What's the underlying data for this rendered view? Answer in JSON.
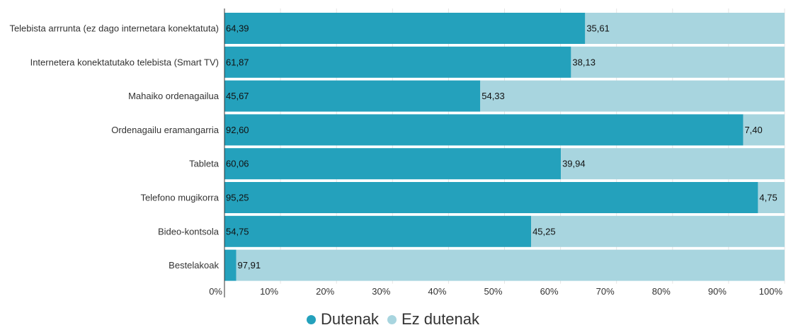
{
  "chart_data": {
    "type": "bar",
    "orientation": "horizontal",
    "stacked": true,
    "categories": [
      "Telebista arrrunta (ez dago internetara konektatuta)",
      "Internetera konektatutako telebista (Smart TV)",
      "Mahaiko ordenagailua",
      "Ordenagailu eramangarria",
      "Tableta",
      "Telefono mugikorra",
      "Bideo-kontsola",
      "Bestelakoak"
    ],
    "series": [
      {
        "name": "Dutenak",
        "color": "#24a1bc",
        "values": [
          64.39,
          61.87,
          45.67,
          92.6,
          60.06,
          95.25,
          54.75,
          2.09
        ],
        "labels": [
          "64,39",
          "61,87",
          "45,67",
          "92,60",
          "60,06",
          "95,25",
          "54,75",
          ""
        ]
      },
      {
        "name": "Ez dutenak",
        "color": "#a8d5df",
        "values": [
          35.61,
          38.13,
          54.33,
          7.4,
          39.94,
          4.75,
          45.25,
          97.91
        ],
        "labels": [
          "35,61",
          "38,13",
          "54,33",
          "7,40",
          "39,94",
          "4,75",
          "45,25",
          "97,91"
        ]
      }
    ],
    "xlim": [
      0,
      100
    ],
    "xticks": [
      "0%",
      "10%",
      "20%",
      "30%",
      "40%",
      "50%",
      "60%",
      "70%",
      "80%",
      "90%",
      "100%"
    ],
    "grid": true,
    "legend_position": "bottom",
    "title": "",
    "xlabel": "",
    "ylabel": ""
  }
}
